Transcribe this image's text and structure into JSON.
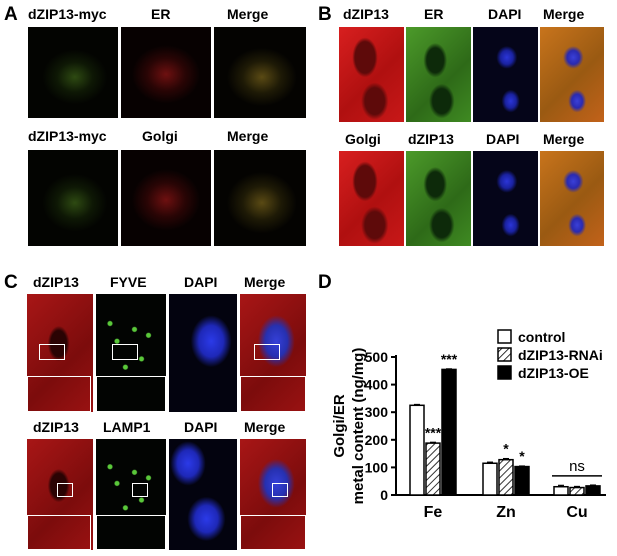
{
  "panelA": {
    "letter": "A",
    "row1": [
      "dZIP13-myc",
      "ER",
      "Merge"
    ],
    "row2": [
      "dZIP13-myc",
      "Golgi",
      "Merge"
    ]
  },
  "panelB": {
    "letter": "B",
    "row1": [
      "dZIP13",
      "ER",
      "DAPI",
      "Merge"
    ],
    "row2": [
      "Golgi",
      "dZIP13",
      "DAPI",
      "Merge"
    ]
  },
  "panelC": {
    "letter": "C",
    "row1": [
      "dZIP13",
      "FYVE",
      "DAPI",
      "Merge"
    ],
    "row2": [
      "dZIP13",
      "LAMP1",
      "DAPI",
      "Merge"
    ]
  },
  "panelD": {
    "letter": "D"
  },
  "chart_data": {
    "type": "bar",
    "ylabel": "Golgi/ER\nmetal content (ng/mg)",
    "ylabel_line1": "Golgi/ER",
    "ylabel_line2": "metal content (ng/mg)",
    "ylim": [
      0,
      500
    ],
    "yticks": [
      0,
      100,
      200,
      300,
      400,
      500
    ],
    "categories": [
      "Fe",
      "Zn",
      "Cu"
    ],
    "series": [
      {
        "name": "control",
        "values": [
          325,
          115,
          30
        ]
      },
      {
        "name": "dZIP13-RNAi",
        "values": [
          188,
          128,
          27
        ]
      },
      {
        "name": "dZIP13-OE",
        "values": [
          455,
          103,
          33
        ]
      }
    ],
    "errors": [
      [
        3,
        3,
        2
      ],
      [
        4,
        4,
        2
      ],
      [
        5,
        4,
        3
      ]
    ],
    "annotations": [
      {
        "category": "Fe",
        "series": 1,
        "text": "***"
      },
      {
        "category": "Fe",
        "series": 2,
        "text": "***"
      },
      {
        "category": "Zn",
        "series": 1,
        "text": "*"
      },
      {
        "category": "Zn",
        "series": 2,
        "text": "*"
      },
      {
        "category": "Cu",
        "text": "ns"
      }
    ],
    "legend_position": "top-right",
    "grid": false
  }
}
